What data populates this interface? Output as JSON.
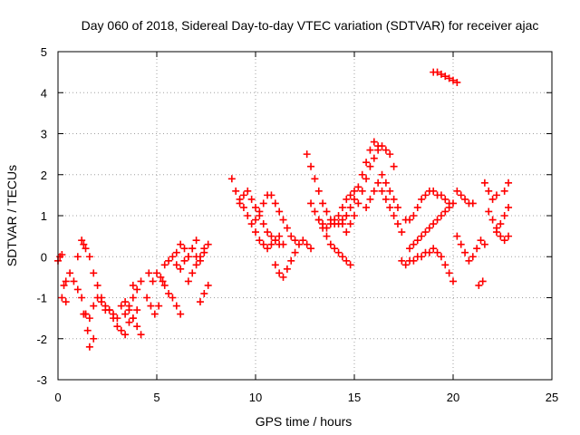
{
  "chart_data": {
    "type": "scatter",
    "title": "Day 060 of 2018, Sidereal Day-to-day VTEC variation (SDTVAR) for receiver ajac",
    "xlabel": "GPS time / hours",
    "ylabel": "SDTVAR / TECUs",
    "xlim": [
      0,
      25
    ],
    "ylim": [
      -3,
      5
    ],
    "xticks": [
      0,
      5,
      10,
      15,
      20,
      25
    ],
    "yticks": [
      -3,
      -2,
      -1,
      0,
      1,
      2,
      3,
      4,
      5
    ],
    "grid": true,
    "marker": "+",
    "series": [
      {
        "name": "SDTVAR",
        "color": "#ff0000",
        "x": [
          0.0,
          0.1,
          0.2,
          0.3,
          0.4,
          0.2,
          0.4,
          0.6,
          0.8,
          1.0,
          1.2,
          1.3,
          1.0,
          1.2,
          1.4,
          1.6,
          1.8,
          2.0,
          2.2,
          2.4,
          1.4,
          1.6,
          1.8,
          1.6,
          1.5,
          1.4,
          1.3,
          1.8,
          2.0,
          2.2,
          2.4,
          2.6,
          2.8,
          3.0,
          3.2,
          3.4,
          3.6,
          3.8,
          4.0,
          2.6,
          2.8,
          3.0,
          3.2,
          3.4,
          3.6,
          3.8,
          4.0,
          4.2,
          3.4,
          3.6,
          3.8,
          3.8,
          4.0,
          4.2,
          4.5,
          4.7,
          4.9,
          5.1,
          5.3,
          4.6,
          4.8,
          5.0,
          5.2,
          5.4,
          5.6,
          5.8,
          6.0,
          6.2,
          5.4,
          5.6,
          5.8,
          6.0,
          6.2,
          6.4,
          6.6,
          6.8,
          7.0,
          7.2,
          7.4,
          7.6,
          6.0,
          6.2,
          6.4,
          6.6,
          6.8,
          7.0,
          6.6,
          6.8,
          7.0,
          7.2,
          7.4,
          7.2,
          7.4,
          7.6,
          8.8,
          9.0,
          9.2,
          9.4,
          9.6,
          9.8,
          10.0,
          10.2,
          10.4,
          10.6,
          10.8,
          11.0,
          11.2,
          9.2,
          9.4,
          9.6,
          9.8,
          10.0,
          10.2,
          10.4,
          10.6,
          10.8,
          11.0,
          11.2,
          11.4,
          10.0,
          10.2,
          10.4,
          10.6,
          10.8,
          11.0,
          11.2,
          11.4,
          11.6,
          11.8,
          12.0,
          11.0,
          11.2,
          11.4,
          11.6,
          11.8,
          12.0,
          12.2,
          12.4,
          12.6,
          12.8,
          12.6,
          12.8,
          13.0,
          13.2,
          13.4,
          13.6,
          13.8,
          14.0,
          14.2,
          14.4,
          14.6,
          12.8,
          13.0,
          13.2,
          13.4,
          13.6,
          13.8,
          14.0,
          14.2,
          14.4,
          14.6,
          14.8,
          15.0,
          13.2,
          13.4,
          13.6,
          13.8,
          14.0,
          14.2,
          14.4,
          14.6,
          14.8,
          14.4,
          14.6,
          14.8,
          15.0,
          15.2,
          15.4,
          15.6,
          15.8,
          16.0,
          16.2,
          14.6,
          14.8,
          15.0,
          15.2,
          15.4,
          15.6,
          15.8,
          16.0,
          16.2,
          16.4,
          16.6,
          16.8,
          17.0,
          15.6,
          15.8,
          16.0,
          16.2,
          16.4,
          16.6,
          16.8,
          17.0,
          17.2,
          17.4,
          16.4,
          16.6,
          16.8,
          17.0,
          17.2,
          17.6,
          17.8,
          18.0,
          18.2,
          18.4,
          18.6,
          18.8,
          19.0,
          19.2,
          19.4,
          19.6,
          19.8,
          17.8,
          18.0,
          18.2,
          18.4,
          18.6,
          18.8,
          19.0,
          19.2,
          19.4,
          19.6,
          19.8,
          20.0,
          17.4,
          17.6,
          17.8,
          18.0,
          18.2,
          18.4,
          18.6,
          18.8,
          19.0,
          19.2,
          19.4,
          19.6,
          19.8,
          20.0,
          19.0,
          19.2,
          19.4,
          19.6,
          19.8,
          20.0,
          20.2,
          20.2,
          20.4,
          20.6,
          20.8,
          21.0,
          20.2,
          20.4,
          20.6,
          20.8,
          21.0,
          21.2,
          21.4,
          21.6,
          21.3,
          21.5,
          21.6,
          21.8,
          22.0,
          22.2,
          21.8,
          22.0,
          22.2,
          22.4,
          22.6,
          22.8,
          22.2,
          22.4,
          22.6,
          22.8,
          22.6,
          22.8
        ],
        "y": [
          -0.1,
          0.0,
          0.05,
          -0.7,
          -0.6,
          -1.0,
          -1.1,
          -0.4,
          -0.6,
          -0.8,
          -1.0,
          0.3,
          0.0,
          0.4,
          0.2,
          0.0,
          -0.4,
          -0.7,
          -1.0,
          -1.3,
          -1.4,
          -1.5,
          -2.0,
          -2.2,
          -1.8,
          -1.4,
          -1.4,
          -1.2,
          -1.0,
          -1.1,
          -1.2,
          -1.3,
          -1.5,
          -1.7,
          -1.8,
          -1.9,
          -1.6,
          -1.5,
          -1.3,
          -1.3,
          -1.4,
          -1.5,
          -1.2,
          -1.1,
          -1.3,
          -1.5,
          -1.7,
          -1.9,
          -1.4,
          -1.2,
          -1.0,
          -0.7,
          -0.8,
          -0.6,
          -1.0,
          -1.2,
          -1.4,
          -1.2,
          -0.6,
          -0.4,
          -0.6,
          -0.4,
          -0.5,
          -0.7,
          -0.9,
          -1.0,
          -1.2,
          -1.4,
          -0.2,
          -0.1,
          0.0,
          -0.2,
          -0.3,
          -0.1,
          0.0,
          0.2,
          0.0,
          -0.1,
          0.1,
          0.3,
          0.1,
          0.3,
          0.2,
          0.0,
          0.2,
          0.4,
          -0.6,
          -0.4,
          -0.2,
          0.0,
          0.2,
          -1.1,
          -0.9,
          -0.7,
          1.9,
          1.6,
          1.4,
          1.2,
          1.0,
          0.8,
          0.6,
          0.4,
          0.3,
          0.2,
          0.3,
          0.4,
          0.5,
          1.3,
          1.5,
          1.6,
          1.4,
          1.2,
          1.0,
          0.8,
          0.6,
          0.5,
          0.4,
          0.3,
          0.3,
          0.9,
          1.1,
          1.3,
          1.5,
          1.5,
          1.3,
          1.1,
          0.9,
          0.7,
          0.5,
          0.4,
          -0.2,
          -0.4,
          -0.5,
          -0.3,
          -0.1,
          0.1,
          0.3,
          0.4,
          0.3,
          0.2,
          2.5,
          2.2,
          1.9,
          1.6,
          1.3,
          1.1,
          0.9,
          0.8,
          0.8,
          0.9,
          1.0,
          1.3,
          1.1,
          0.9,
          0.8,
          0.7,
          0.8,
          0.9,
          1.0,
          1.2,
          1.4,
          1.5,
          1.6,
          0.9,
          0.7,
          0.5,
          0.3,
          0.2,
          0.1,
          0.0,
          -0.1,
          -0.2,
          0.8,
          1.0,
          1.2,
          1.4,
          1.7,
          2.0,
          2.3,
          2.6,
          2.8,
          2.7,
          0.6,
          0.8,
          1.0,
          1.3,
          1.6,
          1.9,
          2.2,
          2.4,
          2.6,
          2.7,
          2.6,
          2.5,
          2.2,
          1.2,
          1.4,
          1.6,
          1.8,
          1.6,
          1.4,
          1.2,
          1.0,
          0.8,
          0.6,
          2.0,
          1.8,
          1.6,
          1.4,
          1.2,
          0.9,
          0.9,
          1.0,
          1.2,
          1.4,
          1.5,
          1.6,
          1.6,
          1.5,
          1.5,
          1.4,
          1.3,
          0.2,
          0.3,
          0.4,
          0.5,
          0.6,
          0.7,
          0.8,
          0.9,
          1.0,
          1.1,
          1.2,
          1.3,
          -0.1,
          -0.2,
          -0.1,
          -0.1,
          0.0,
          0.0,
          0.1,
          0.1,
          0.2,
          0.1,
          0.0,
          -0.2,
          -0.4,
          -0.6,
          4.5,
          4.5,
          4.45,
          4.4,
          4.35,
          4.3,
          4.25,
          1.6,
          1.5,
          1.4,
          1.3,
          1.3,
          0.5,
          0.3,
          0.1,
          -0.1,
          0.0,
          0.2,
          0.4,
          0.3,
          -0.7,
          -0.6,
          1.8,
          1.6,
          1.4,
          1.5,
          1.1,
          0.9,
          0.7,
          0.5,
          0.4,
          0.5,
          0.6,
          0.8,
          1.0,
          1.2,
          1.6,
          1.8
        ]
      }
    ]
  }
}
